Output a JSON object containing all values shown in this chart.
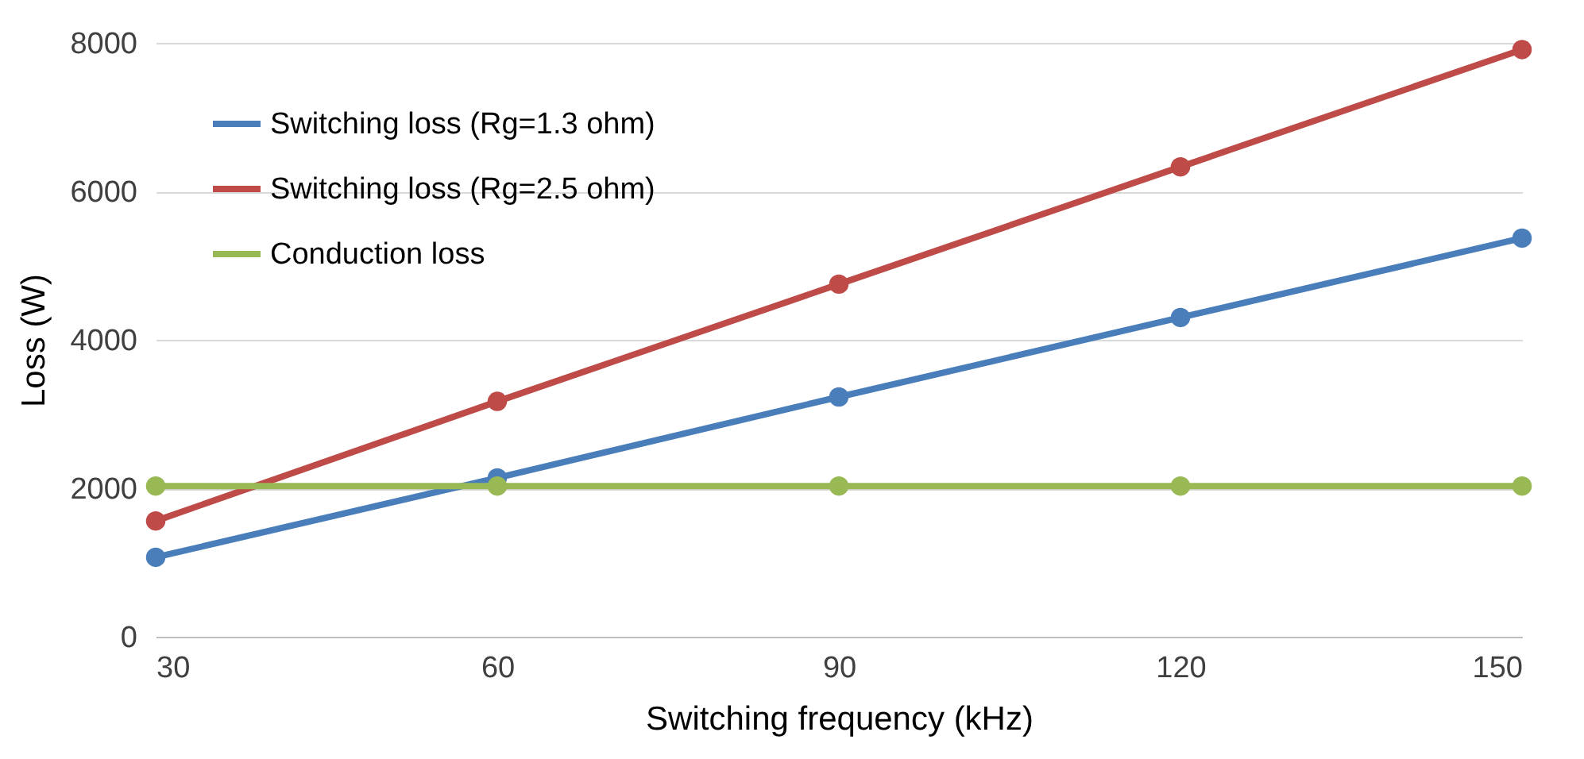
{
  "chart_data": {
    "type": "line",
    "xlabel": "Switching frequency (kHz)",
    "ylabel": "Loss (W)",
    "x": [
      30,
      60,
      90,
      120,
      150
    ],
    "xlim": [
      30,
      150
    ],
    "xticks": [
      30,
      60,
      90,
      120,
      150
    ],
    "ylim": [
      0,
      8000
    ],
    "yticks": [
      0,
      2000,
      4000,
      6000,
      8000
    ],
    "grid": "y",
    "legend": "top left",
    "marker": "circle",
    "line_style": "solid",
    "series": [
      {
        "name": "Switching loss (Rg=1.3 ohm)",
        "color": "#4a7ebb",
        "values": [
          1070,
          2140,
          3230,
          4300,
          5370
        ]
      },
      {
        "name": "Switching loss (Rg=2.5 ohm)",
        "color": "#be4b48",
        "values": [
          1560,
          3170,
          4750,
          6330,
          7910
        ]
      },
      {
        "name": "Conduction loss",
        "color": "#98b954",
        "values": [
          2030,
          2030,
          2030,
          2030,
          2030
        ]
      }
    ]
  }
}
